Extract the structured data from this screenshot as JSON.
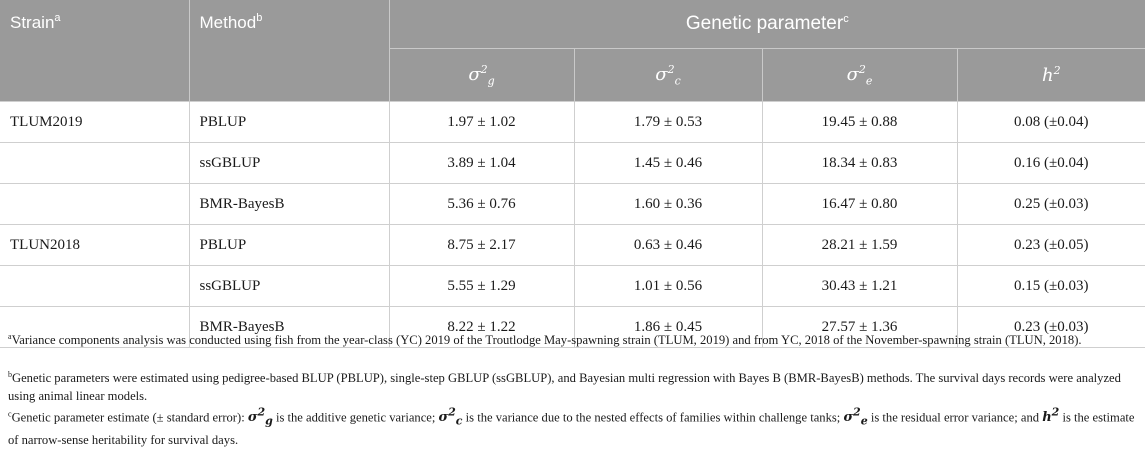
{
  "header": {
    "strain": "Strain",
    "strain_mark": "a",
    "method": "Method",
    "method_mark": "b",
    "group": "Genetic parameter",
    "group_mark": "c",
    "col_g": {
      "base": "σ",
      "sup": "2",
      "sub": "g"
    },
    "col_c": {
      "base": "σ",
      "sup": "2",
      "sub": "c"
    },
    "col_e": {
      "base": "σ",
      "sup": "2",
      "sub": "e"
    },
    "col_h": {
      "base": "h",
      "sup": "2"
    }
  },
  "rows": [
    {
      "strain": "TLUM2019",
      "method": "PBLUP",
      "g": "1.97 ± 1.02",
      "c": "1.79 ± 0.53",
      "e": "19.45 ± 0.88",
      "h": "0.08 (±0.04)"
    },
    {
      "strain": "",
      "method": "ssGBLUP",
      "g": "3.89 ± 1.04",
      "c": "1.45 ± 0.46",
      "e": "18.34 ± 0.83",
      "h": "0.16 (±0.04)"
    },
    {
      "strain": "",
      "method": "BMR-BayesB",
      "g": "5.36 ± 0.76",
      "c": "1.60 ± 0.36",
      "e": "16.47 ± 0.80",
      "h": "0.25 (±0.03)"
    },
    {
      "strain": "TLUN2018",
      "method": "PBLUP",
      "g": "8.75 ± 2.17",
      "c": "0.63 ± 0.46",
      "e": "28.21 ± 1.59",
      "h": "0.23 (±0.05)"
    },
    {
      "strain": "",
      "method": "ssGBLUP",
      "g": "5.55 ± 1.29",
      "c": "1.01 ± 0.56",
      "e": "30.43 ± 1.21",
      "h": "0.15 (±0.03)"
    },
    {
      "strain": "",
      "method": "BMR-BayesB",
      "g": "8.22 ± 1.22",
      "c": "1.86 ± 0.45",
      "e": "27.57 ± 1.36",
      "h": "0.23 (±0.03)"
    }
  ],
  "footnotes": {
    "a": {
      "mark": "a",
      "text": "Variance components analysis was conducted using fish from the year-class (YC) 2019 of the Troutlodge May-spawning strain (TLUM, 2019) and from YC, 2018 of the November-spawning strain (TLUN, 2018)."
    },
    "b": {
      "mark": "b",
      "text": "Genetic parameters were estimated using pedigree-based BLUP (PBLUP), single-step GBLUP (ssGBLUP), and Bayesian multi regression with Bayes B (BMR-BayesB) methods. The survival days records were analyzed using animal linear models."
    },
    "c": {
      "mark": "c",
      "p1": "Genetic parameter estimate (± standard error): ",
      "p2": " is the additive genetic variance; ",
      "p3": " is the variance due to the nested effects of families within challenge tanks; ",
      "p4": " is the residual error variance; and ",
      "p5": " is the estimate of narrow-sense heritability for survival days."
    }
  }
}
